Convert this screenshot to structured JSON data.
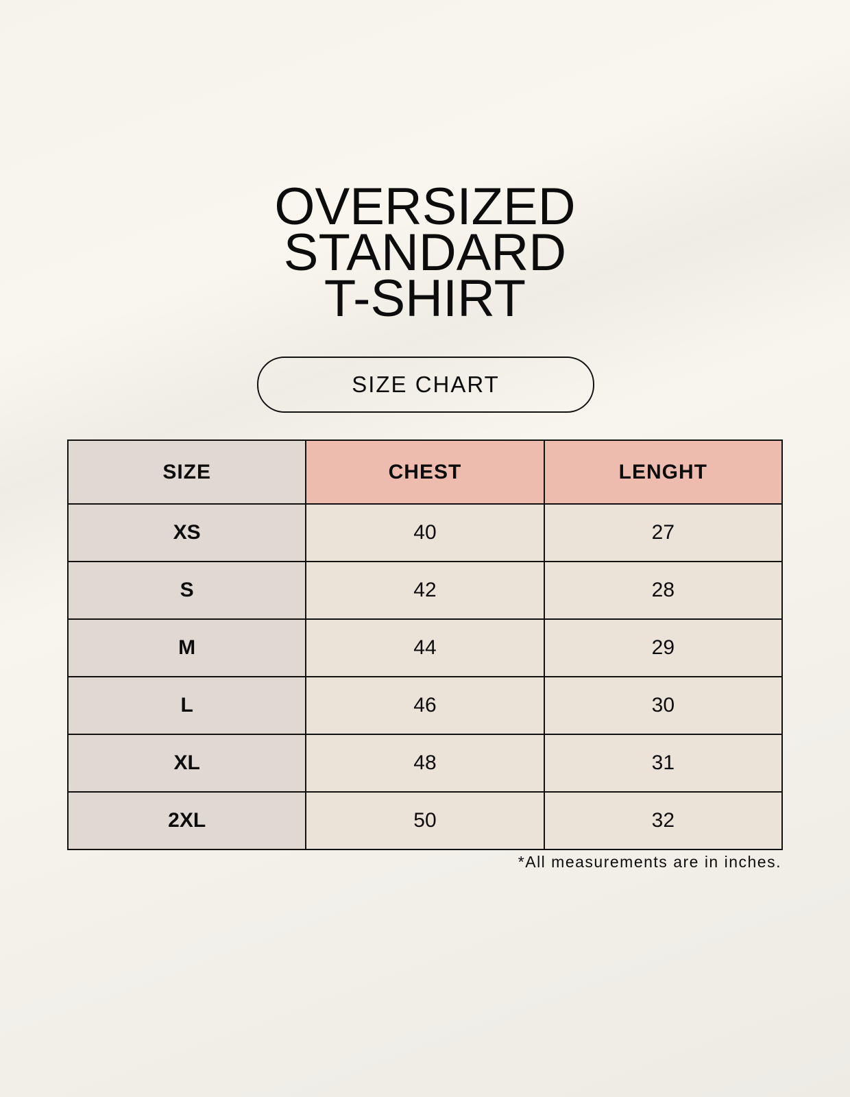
{
  "title_lines": [
    "OVERSIZED",
    "STANDARD",
    "T-SHIRT"
  ],
  "badge": "SIZE CHART",
  "table": {
    "headers": [
      "SIZE",
      "CHEST",
      "LENGHT"
    ],
    "rows": [
      [
        "XS",
        "40",
        "27"
      ],
      [
        "S",
        "42",
        "28"
      ],
      [
        "M",
        "44",
        "29"
      ],
      [
        "L",
        "46",
        "30"
      ],
      [
        "XL",
        "48",
        "31"
      ],
      [
        "2XL",
        "50",
        "32"
      ]
    ]
  },
  "note": "*All measurements are in inches.",
  "colors": {
    "size_column": "#e0d9d3",
    "header_accent": "#edbcae",
    "cell": "#ebe3d8"
  }
}
